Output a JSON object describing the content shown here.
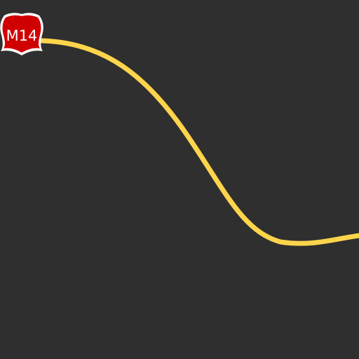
{
  "map": {
    "background_color": "#2f2f2f",
    "road": {
      "color": "#fdd54c",
      "route_shield": {
        "label": "M14",
        "icon": "road-shield-icon",
        "fill_color": "#d10000",
        "border_color": "#ffffff",
        "text_color": "#ffffff"
      }
    }
  }
}
